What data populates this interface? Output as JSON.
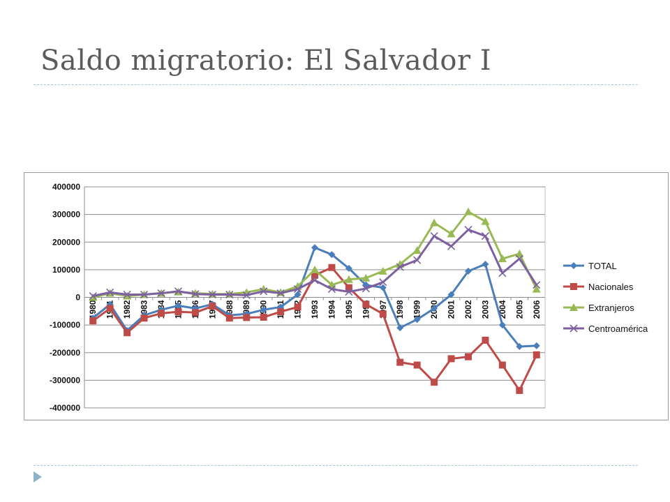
{
  "slide": {
    "title": "Saldo migratorio: El Salvador I"
  },
  "colors": {
    "title": "#5b5b5b",
    "rule": "#a9c4d4",
    "bullet": "#8fb3c6"
  },
  "chart_data": {
    "type": "line",
    "title": "",
    "xlabel": "",
    "ylabel": "",
    "ylim": [
      -400000,
      400000
    ],
    "yticks": [
      400000,
      300000,
      200000,
      100000,
      0,
      -100000,
      -200000,
      -300000,
      -400000
    ],
    "grid": true,
    "legend_position": "right",
    "categories": [
      "1980",
      "1981",
      "1982",
      "1983",
      "1984",
      "1985",
      "1986",
      "1987",
      "1988",
      "1989",
      "1990",
      "1991",
      "1992",
      "1993",
      "1994",
      "1995",
      "1996",
      "1997",
      "1998",
      "1999",
      "2000",
      "2001",
      "2002",
      "2003",
      "2004",
      "2005",
      "2006"
    ],
    "series": [
      {
        "name": "TOTAL",
        "color": "#4a7ebb",
        "marker": "diamond",
        "values": [
          -75000,
          -25000,
          -120000,
          -65000,
          -45000,
          -30000,
          -40000,
          -25000,
          -65000,
          -60000,
          -45000,
          -35000,
          10000,
          180000,
          155000,
          105000,
          45000,
          35000,
          -110000,
          -80000,
          -40000,
          10000,
          95000,
          120000,
          -100000,
          -178000,
          -175000
        ]
      },
      {
        "name": "Nacionales",
        "color": "#be4b48",
        "marker": "square",
        "values": [
          -85000,
          -40000,
          -128000,
          -75000,
          -58000,
          -52000,
          -55000,
          -32000,
          -75000,
          -73000,
          -72000,
          -52000,
          -35000,
          80000,
          108000,
          35000,
          -25000,
          -60000,
          -235000,
          -245000,
          -307000,
          -222000,
          -215000,
          -155000,
          -245000,
          -337000,
          -208000
        ]
      },
      {
        "name": "Extranjeros",
        "color": "#98b954",
        "marker": "triangle",
        "values": [
          0,
          15000,
          5000,
          10000,
          15000,
          20000,
          15000,
          12000,
          12000,
          18000,
          30000,
          18000,
          40000,
          100000,
          45000,
          65000,
          70000,
          95000,
          120000,
          170000,
          270000,
          230000,
          310000,
          275000,
          140000,
          158000,
          30000
        ]
      },
      {
        "name": "Centroamérica",
        "color": "#7d60a0",
        "marker": "x",
        "values": [
          5000,
          18000,
          10000,
          10000,
          15000,
          22000,
          12000,
          10000,
          10000,
          8000,
          22000,
          15000,
          30000,
          62000,
          30000,
          20000,
          32000,
          55000,
          110000,
          135000,
          222000,
          185000,
          245000,
          222000,
          88000,
          140000,
          45000
        ]
      }
    ]
  }
}
